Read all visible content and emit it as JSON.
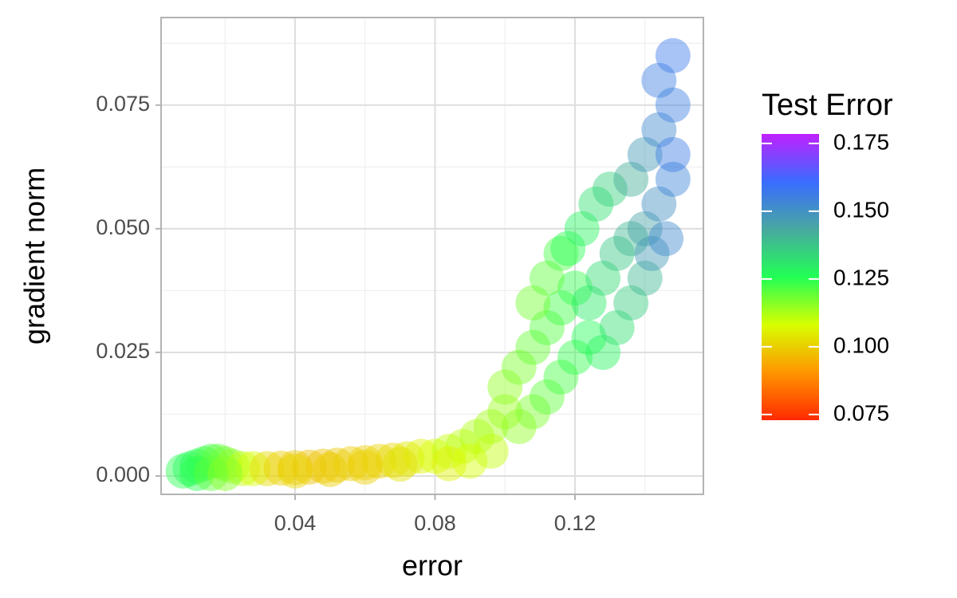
{
  "chart_data": {
    "type": "scatter",
    "x_label": "error",
    "y_label": "gradient norm",
    "xlim": [
      0.0017,
      0.1567
    ],
    "ylim": [
      -0.0037,
      0.0927
    ],
    "xticks": [
      0.04,
      0.08,
      0.12
    ],
    "yticks": [
      {
        "value": 0,
        "label": "0.000"
      },
      {
        "value": 0.025,
        "label": "0.025"
      },
      {
        "value": 0.05,
        "label": "0.050"
      },
      {
        "value": 0.075,
        "label": "0.075"
      }
    ],
    "minor_xticks": [
      0.02,
      0.06,
      0.1,
      0.14
    ],
    "minor_yticks": [
      0.0125,
      0.0375,
      0.0625,
      0.0875
    ],
    "grid": true,
    "x": [
      0.008,
      0.01,
      0.012,
      0.014,
      0.016,
      0.018,
      0.02,
      0.022,
      0.025,
      0.028,
      0.012,
      0.016,
      0.02,
      0.032,
      0.036,
      0.04,
      0.044,
      0.048,
      0.052,
      0.056,
      0.06,
      0.064,
      0.068,
      0.072,
      0.076,
      0.04,
      0.05,
      0.06,
      0.07,
      0.08,
      0.084,
      0.088,
      0.092,
      0.096,
      0.1,
      0.084,
      0.09,
      0.096,
      0.1,
      0.104,
      0.108,
      0.112,
      0.116,
      0.12,
      0.104,
      0.108,
      0.112,
      0.116,
      0.12,
      0.124,
      0.108,
      0.112,
      0.116,
      0.118,
      0.122,
      0.126,
      0.13,
      0.124,
      0.128,
      0.132,
      0.136,
      0.128,
      0.132,
      0.136,
      0.14,
      0.136,
      0.14,
      0.144,
      0.148,
      0.14,
      0.144,
      0.148,
      0.142,
      0.146,
      0.148,
      0.144,
      0.148
    ],
    "values": [
      0.001,
      0.0015,
      0.002,
      0.0025,
      0.003,
      0.003,
      0.0025,
      0.002,
      0.0015,
      0.0015,
      0.0005,
      0.0005,
      0.0005,
      0.0015,
      0.0016,
      0.0017,
      0.0018,
      0.002,
      0.0022,
      0.0025,
      0.0027,
      0.003,
      0.0032,
      0.0035,
      0.004,
      0.001,
      0.0013,
      0.0018,
      0.0024,
      0.004,
      0.005,
      0.006,
      0.008,
      0.01,
      0.013,
      0.0025,
      0.003,
      0.005,
      0.018,
      0.022,
      0.026,
      0.03,
      0.034,
      0.038,
      0.01,
      0.013,
      0.016,
      0.02,
      0.024,
      0.028,
      0.035,
      0.04,
      0.045,
      0.046,
      0.05,
      0.055,
      0.058,
      0.035,
      0.04,
      0.045,
      0.048,
      0.025,
      0.03,
      0.035,
      0.04,
      0.06,
      0.065,
      0.07,
      0.075,
      0.05,
      0.055,
      0.06,
      0.045,
      0.048,
      0.065,
      0.08,
      0.085
    ],
    "color_values": [
      0.125,
      0.127,
      0.126,
      0.124,
      0.122,
      0.12,
      0.118,
      0.115,
      0.11,
      0.108,
      0.125,
      0.12,
      0.116,
      0.102,
      0.1,
      0.099,
      0.098,
      0.098,
      0.099,
      0.1,
      0.1,
      0.101,
      0.102,
      0.104,
      0.106,
      0.101,
      0.1,
      0.1,
      0.103,
      0.108,
      0.11,
      0.111,
      0.112,
      0.113,
      0.114,
      0.106,
      0.108,
      0.11,
      0.115,
      0.117,
      0.119,
      0.121,
      0.123,
      0.124,
      0.115,
      0.117,
      0.12,
      0.122,
      0.124,
      0.126,
      0.118,
      0.12,
      0.122,
      0.125,
      0.128,
      0.132,
      0.135,
      0.13,
      0.133,
      0.137,
      0.14,
      0.128,
      0.132,
      0.136,
      0.14,
      0.142,
      0.148,
      0.152,
      0.155,
      0.145,
      0.15,
      0.154,
      0.148,
      0.152,
      0.156,
      0.155,
      0.157
    ],
    "colorscale": {
      "title": "Test Error",
      "limits": [
        0.0729,
        0.1785
      ],
      "ticks": [
        0.075,
        {
          "value": 0.1,
          "label": "0.100"
        },
        0.125,
        {
          "value": 0.15,
          "label": "0.150"
        },
        0.175
      ],
      "colors": [
        "#ff2a00",
        "#ff9500",
        "#d8ff00",
        "#22ff55",
        "#48a8a0",
        "#3a6cff",
        "#c020ff"
      ]
    }
  }
}
